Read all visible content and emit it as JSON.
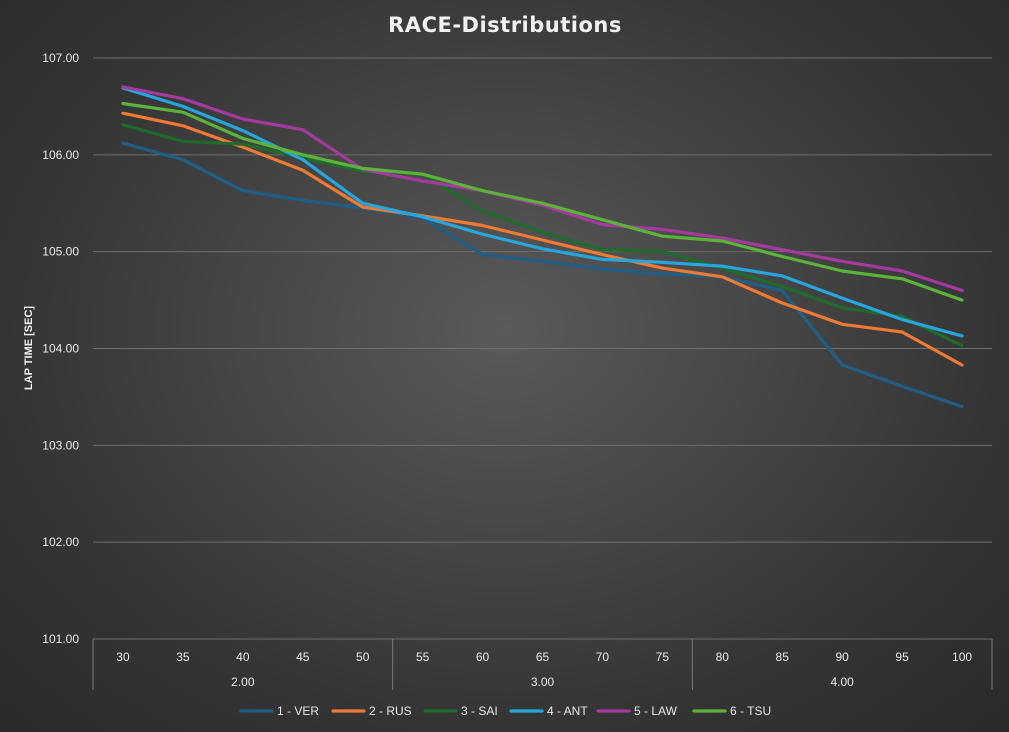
{
  "chart_data": {
    "type": "line",
    "title": "RACE-Distributions",
    "xlabel": "",
    "ylabel": "LAP TIME [SEC]",
    "ylim": [
      101,
      107
    ],
    "yticks": [
      "101.00",
      "102.00",
      "103.00",
      "104.00",
      "105.00",
      "106.00",
      "107.00"
    ],
    "grid": true,
    "legend_position": "bottom",
    "categories": [
      "30",
      "35",
      "40",
      "45",
      "50",
      "55",
      "60",
      "65",
      "70",
      "75",
      "80",
      "85",
      "90",
      "95",
      "100"
    ],
    "groups": [
      {
        "label": "2.00",
        "start": 0,
        "end": 4
      },
      {
        "label": "3.00",
        "start": 5,
        "end": 9
      },
      {
        "label": "4.00",
        "start": 10,
        "end": 14
      }
    ],
    "series": [
      {
        "name": "1 - VER",
        "color": "#1f5f87",
        "values": [
          106.12,
          105.95,
          105.63,
          105.53,
          105.45,
          105.35,
          104.97,
          104.9,
          104.82,
          104.77,
          104.74,
          104.6,
          103.83,
          103.61,
          103.4
        ]
      },
      {
        "name": "2 - RUS",
        "color": "#ee7a35",
        "values": [
          106.43,
          106.3,
          106.08,
          105.84,
          105.46,
          105.37,
          105.27,
          105.12,
          104.97,
          104.83,
          104.74,
          104.47,
          104.25,
          104.17,
          103.83
        ]
      },
      {
        "name": "3 - SAI",
        "color": "#1f6b2c",
        "values": [
          106.31,
          106.14,
          106.11,
          105.97,
          105.83,
          105.8,
          105.42,
          105.2,
          105.02,
          105.0,
          104.83,
          104.64,
          104.42,
          104.33,
          104.03
        ]
      },
      {
        "name": "4 - ANT",
        "color": "#27a6de",
        "values": [
          106.69,
          106.5,
          106.25,
          105.95,
          105.5,
          105.36,
          105.18,
          105.03,
          104.92,
          104.89,
          104.85,
          104.75,
          104.52,
          104.3,
          104.13
        ]
      },
      {
        "name": "5 - LAW",
        "color": "#a43aa0",
        "values": [
          106.7,
          106.58,
          106.37,
          106.26,
          105.85,
          105.73,
          105.63,
          105.48,
          105.28,
          105.23,
          105.14,
          105.02,
          104.9,
          104.8,
          104.6
        ]
      },
      {
        "name": "6 - TSU",
        "color": "#5cb33a",
        "values": [
          106.53,
          106.44,
          106.17,
          106.0,
          105.86,
          105.8,
          105.63,
          105.5,
          105.33,
          105.16,
          105.11,
          104.95,
          104.8,
          104.72,
          104.5
        ]
      }
    ]
  }
}
